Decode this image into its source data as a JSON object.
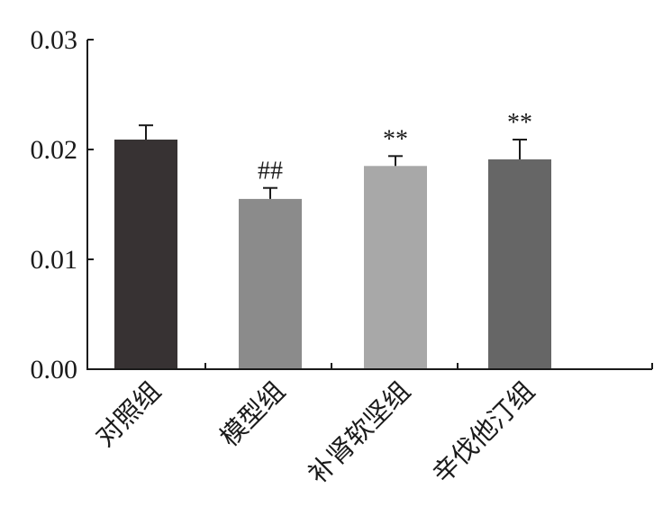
{
  "chart_data": {
    "type": "bar",
    "categories": [
      "对照组",
      "模型组",
      "补肾软坚组",
      "辛伐他汀组"
    ],
    "values": [
      0.0209,
      0.0155,
      0.0185,
      0.0191
    ],
    "errors": [
      0.0013,
      0.001,
      0.0009,
      0.0018
    ],
    "annotations": [
      "",
      "##",
      "**",
      "**"
    ],
    "bar_colors": [
      "#373233",
      "#8b8b8b",
      "#a8a8a8",
      "#666666"
    ],
    "ylim": [
      0,
      0.03
    ],
    "yticks": [
      0.0,
      0.01,
      0.02,
      0.03
    ],
    "ytick_labels": [
      "0.00",
      "0.01",
      "0.02",
      "0.03"
    ],
    "grid": false,
    "legend": "none"
  }
}
